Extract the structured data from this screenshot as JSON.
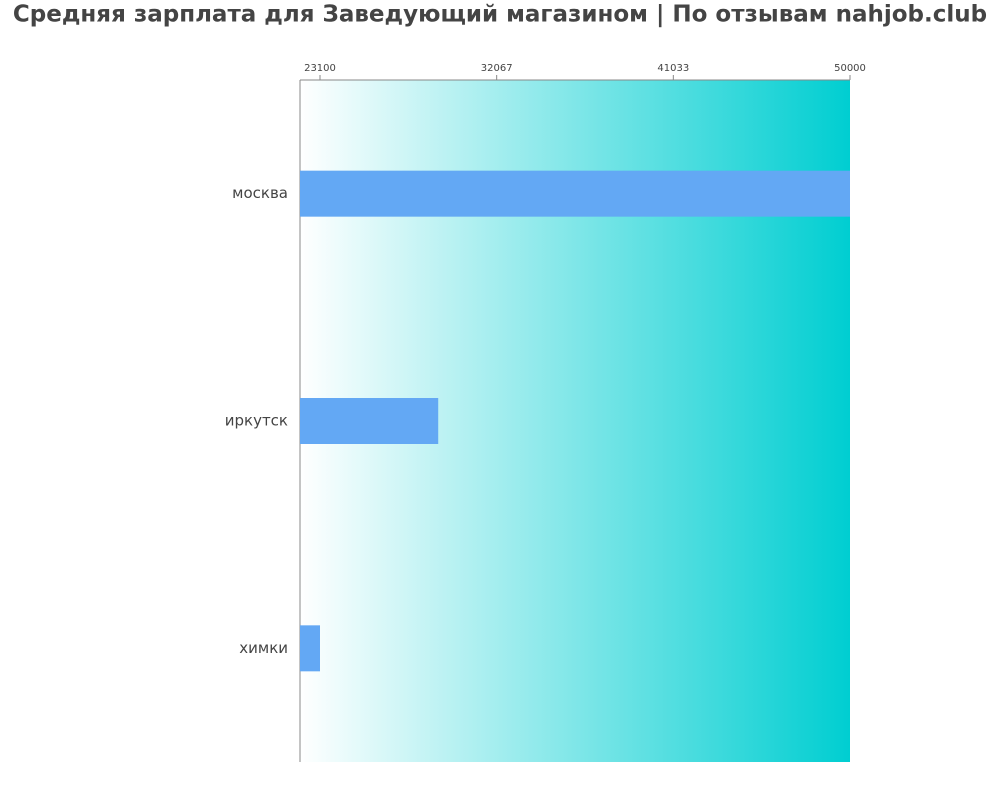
{
  "chart_data": {
    "type": "hbar",
    "title": "Средняя зарплата для Заведующий магазином | По отзывам nahjob.club",
    "categories": [
      "москва",
      "иркутск",
      "химки"
    ],
    "values": [
      50000,
      29100,
      23100
    ],
    "color": "#63a8f4",
    "xlim": [
      22085,
      50000
    ],
    "xticks": [
      23100,
      32067,
      41033,
      50000
    ]
  }
}
